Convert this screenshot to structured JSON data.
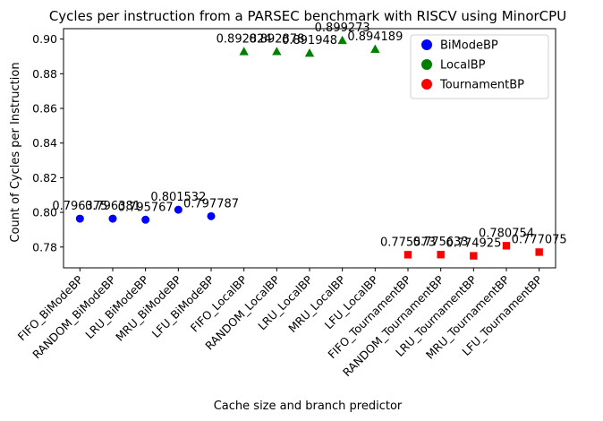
{
  "chart_data": {
    "type": "scatter",
    "title": "Cycles per instruction from a PARSEC benchmark with RISCV using MinorCPU",
    "xlabel": "Cache size and branch predictor",
    "ylabel": "Count of Cycles per Instruction",
    "categories": [
      "FIFO_BiModeBP",
      "RANDOM_BiModeBP",
      "LRU_BiModeBP",
      "MRU_BiModeBP",
      "LFU_BiModeBP",
      "FIFO_LocalBP",
      "RANDOM_LocalBP",
      "LRU_LocalBP",
      "MRU_LocalBP",
      "LFU_LocalBP",
      "FIFO_TournamentBP",
      "RANDOM_TournamentBP",
      "LRU_TournamentBP",
      "MRU_TournamentBP",
      "LFU_TournamentBP"
    ],
    "ylim": [
      0.768,
      0.906
    ],
    "yticks": [
      "0.78",
      "0.80",
      "0.82",
      "0.84",
      "0.86",
      "0.88",
      "0.90"
    ],
    "legend_position": "top-right",
    "series": [
      {
        "name": "BiModeBP",
        "color": "#0000ff",
        "marker": "circle",
        "indices": [
          0,
          1,
          2,
          3,
          4
        ],
        "values": [
          0.796375,
          0.796381,
          0.795767,
          0.801532,
          0.797787
        ],
        "labels": [
          "0.796375",
          "0.796381",
          "0.795767",
          "0.801532",
          "0.797787"
        ]
      },
      {
        "name": "LocalBP",
        "color": "#008000",
        "marker": "triangle",
        "indices": [
          5,
          6,
          7,
          8,
          9
        ],
        "values": [
          0.892824,
          0.892878,
          0.891948,
          0.899273,
          0.894189
        ],
        "labels": [
          "0.892824",
          "0.892878",
          "0.891948",
          "0.899273",
          "0.894189"
        ]
      },
      {
        "name": "TournamentBP",
        "color": "#ff0000",
        "marker": "square",
        "indices": [
          10,
          11,
          12,
          13,
          14
        ],
        "values": [
          0.775573,
          0.775633,
          0.774925,
          0.780754,
          0.777075
        ],
        "labels": [
          "0.775573",
          "0.775633",
          "0.774925",
          "0.780754",
          "0.777075"
        ]
      }
    ]
  }
}
